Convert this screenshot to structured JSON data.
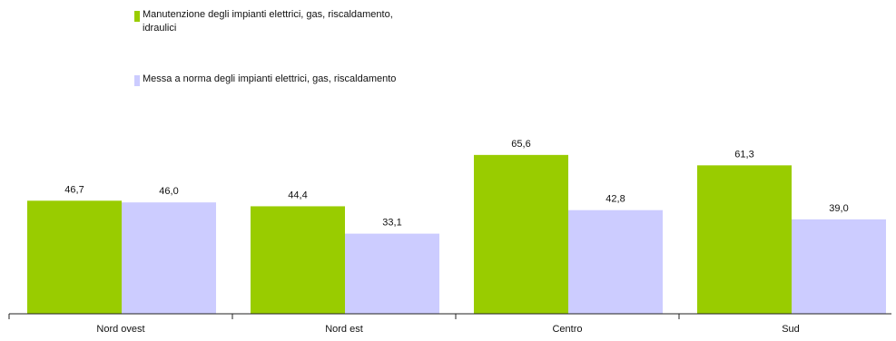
{
  "chart_data": {
    "type": "bar",
    "categories": [
      "Nord ovest",
      "Nord est",
      "Centro",
      "Sud"
    ],
    "series": [
      {
        "name": "Manutenzione degli impianti elettrici, gas, riscaldamento, idraulici",
        "values": [
          46.7,
          44.4,
          65.6,
          61.3
        ],
        "labels": [
          "46,7",
          "44,4",
          "65,6",
          "61,3"
        ],
        "color": "#99cc00"
      },
      {
        "name": "Messa a norma degli impianti elettrici, gas, riscaldamento",
        "values": [
          46.0,
          33.1,
          42.8,
          39.0
        ],
        "labels": [
          "46,0",
          "33,1",
          "42,8",
          "39,0"
        ],
        "color": "#ccccff"
      }
    ],
    "ylim": [
      0,
      70
    ],
    "grid": false,
    "legend_position": "top-left"
  }
}
